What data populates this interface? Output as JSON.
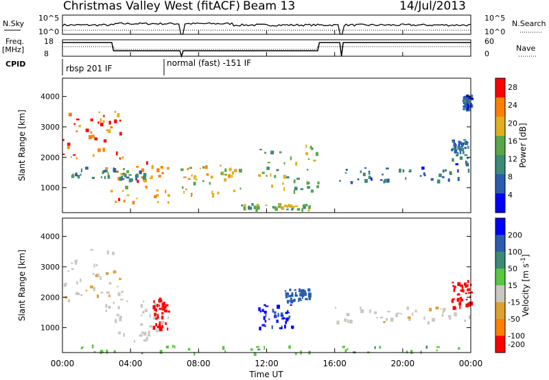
{
  "header": {
    "title": "Christmas Valley West (fitACF)",
    "beam": "Beam 13",
    "date": "14/Jul/2013"
  },
  "panels": {
    "nsky": {
      "left_label": "N.Sky",
      "left_ticks": [
        "10^5",
        "10^0"
      ],
      "right_label": "N.Search",
      "right_ticks": [
        "10^5",
        "10^0"
      ]
    },
    "freq": {
      "left_label_1": "Freq.",
      "left_label_2": "[MHz]",
      "left_ticks": [
        "18",
        "8"
      ],
      "right_label": "Nave",
      "right_ticks": [
        "60",
        "0"
      ]
    },
    "cpid": {
      "label": "CPID",
      "segments": [
        "rbsp 201 IF",
        "normal (fast) -151 IF"
      ]
    }
  },
  "chart_data": [
    {
      "type": "heatmap",
      "name_printed": "",
      "ylabel": "Slant Range [km]",
      "xlabel": "Time UT",
      "x_ticks": [
        "00:00",
        "04:00",
        "08:00",
        "12:00",
        "16:00",
        "20:00",
        "00:00"
      ],
      "y_ticks": [
        1000,
        2000,
        3000,
        4000
      ],
      "xlim_hours": [
        0,
        24
      ],
      "ylim_km": [
        180,
        4600
      ],
      "colorbar": {
        "label": "Power [dB]",
        "ticks": [
          4,
          8,
          12,
          16,
          20,
          24,
          28
        ],
        "range": [
          0,
          30
        ],
        "colors": [
          "#0000ff",
          "#2a5db0",
          "#3c8a78",
          "#58a848",
          "#e0b020",
          "#ff8000",
          "#ff0000"
        ]
      },
      "regions": [
        {
          "t": [
            0.0,
            3.5
          ],
          "r": [
            1900,
            3600
          ],
          "level": 24
        },
        {
          "t": [
            2.5,
            6.2
          ],
          "r": [
            500,
            1900
          ],
          "level": 22
        },
        {
          "t": [
            0.5,
            5.0
          ],
          "r": [
            1300,
            1700
          ],
          "level": 10
        },
        {
          "t": [
            6.8,
            10.5
          ],
          "r": [
            800,
            1800
          ],
          "level": 18
        },
        {
          "t": [
            10.5,
            14.5
          ],
          "r": [
            300,
            500
          ],
          "level": 16
        },
        {
          "t": [
            11.5,
            15.0
          ],
          "r": [
            900,
            2500
          ],
          "level": 14
        },
        {
          "t": [
            16.0,
            24.0
          ],
          "r": [
            1200,
            1700
          ],
          "level": 8
        },
        {
          "t": [
            22.8,
            23.8
          ],
          "r": [
            1800,
            2600
          ],
          "level": 8
        },
        {
          "t": [
            23.5,
            24.0
          ],
          "r": [
            3600,
            4100
          ],
          "level": 6
        }
      ]
    },
    {
      "type": "heatmap",
      "ylabel": "Slant Range [km]",
      "xlabel": "Time UT",
      "x_ticks": [
        "00:00",
        "04:00",
        "08:00",
        "12:00",
        "16:00",
        "20:00",
        "00:00"
      ],
      "y_ticks": [
        1000,
        2000,
        3000,
        4000
      ],
      "xlim_hours": [
        0,
        24
      ],
      "ylim_km": [
        180,
        4600
      ],
      "colorbar": {
        "label": "Velocity [m s^-1]",
        "ticks": [
          200,
          100,
          50,
          15,
          -15,
          -50,
          -100,
          -200
        ],
        "colors": [
          "#0000ff",
          "#2a5db0",
          "#3c8a78",
          "#58c840",
          "#c8c8c0",
          "#e0a030",
          "#ff8000",
          "#ff0000"
        ]
      },
      "regions": [
        {
          "t": [
            0.0,
            3.5
          ],
          "r": [
            1900,
            3600
          ],
          "vel": -10
        },
        {
          "t": [
            2.5,
            6.2
          ],
          "r": [
            500,
            1900
          ],
          "vel": 0
        },
        {
          "t": [
            5.3,
            6.2
          ],
          "r": [
            1000,
            2000
          ],
          "vel": -200
        },
        {
          "t": [
            11.5,
            13.5
          ],
          "r": [
            1000,
            1800
          ],
          "vel": 200
        },
        {
          "t": [
            13.0,
            14.5
          ],
          "r": [
            1900,
            2300
          ],
          "vel": 180
        },
        {
          "t": [
            0.0,
            24.0
          ],
          "r": [
            180,
            450
          ],
          "vel": 40
        },
        {
          "t": [
            16.0,
            24.0
          ],
          "r": [
            1200,
            1700
          ],
          "vel": -5
        },
        {
          "t": [
            22.8,
            24.0
          ],
          "r": [
            1600,
            2600
          ],
          "vel": -200
        }
      ]
    }
  ],
  "colors": {
    "axis": "#000000",
    "dotted": "#000000"
  }
}
